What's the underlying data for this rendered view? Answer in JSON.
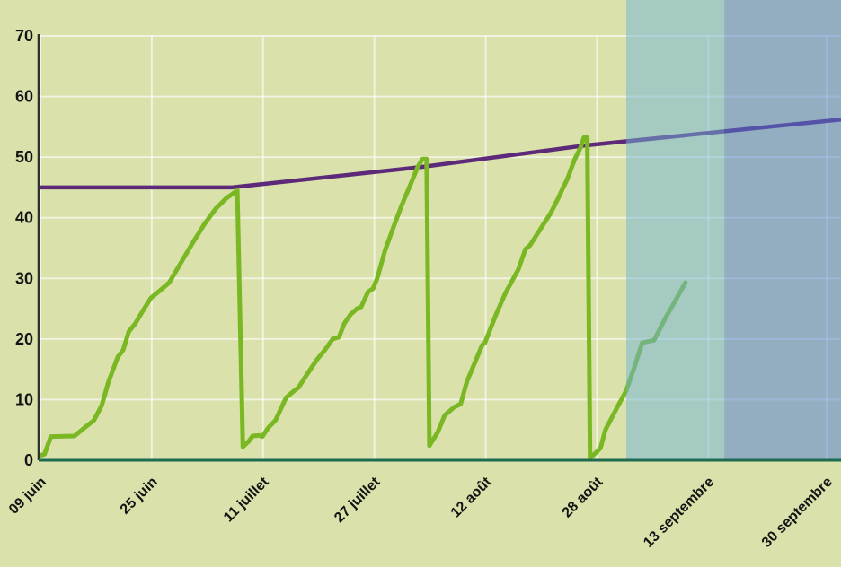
{
  "chart_data": {
    "type": "line",
    "title": "",
    "xlabel": "",
    "ylabel": "",
    "legend": "none",
    "grid": true,
    "x_unit": "days-since-first-tick",
    "x_domain": [
      0,
      115.1
    ],
    "y_domain": [
      0,
      70
    ],
    "y_ticks": [
      0,
      10,
      20,
      30,
      40,
      50,
      60,
      70
    ],
    "x_ticks": [
      {
        "day": 0,
        "label": "09 juin"
      },
      {
        "day": 16,
        "label": "25 juin"
      },
      {
        "day": 32,
        "label": "11 juillet"
      },
      {
        "day": 48,
        "label": "27 juillet"
      },
      {
        "day": 64,
        "label": "12 août"
      },
      {
        "day": 80,
        "label": "28 août"
      },
      {
        "day": 96,
        "label": "13 septembre"
      },
      {
        "day": 113,
        "label": "30 septembre"
      }
    ],
    "series": [
      {
        "name": "threshold-line",
        "color": "#5c2a78",
        "width": 4.5,
        "points": [
          [
            0,
            45
          ],
          [
            27.5,
            45
          ],
          [
            54.9,
            48.4
          ],
          [
            78.1,
            51.9
          ],
          [
            115.1,
            56.2
          ]
        ]
      },
      {
        "name": "observed-line",
        "color": "#79b723",
        "width": 5,
        "points": [
          [
            0,
            0.8
          ],
          [
            0.6,
            1
          ],
          [
            1.5,
            3.9
          ],
          [
            4.9,
            4
          ],
          [
            6.5,
            5.5
          ],
          [
            7.7,
            6.6
          ],
          [
            8.8,
            9
          ],
          [
            9.8,
            13
          ],
          [
            11.1,
            17
          ],
          [
            11.9,
            18.2
          ],
          [
            12.7,
            21.2
          ],
          [
            13.6,
            22.5
          ],
          [
            14.9,
            25
          ],
          [
            15.9,
            26.8
          ],
          [
            17.2,
            28
          ],
          [
            18.5,
            29.3
          ],
          [
            20,
            32.2
          ],
          [
            21.7,
            35.5
          ],
          [
            23.6,
            39
          ],
          [
            25.2,
            41.5
          ],
          [
            26.7,
            43.2
          ],
          [
            28.3,
            44.5
          ],
          [
            29.1,
            2.2
          ],
          [
            30,
            3.2
          ],
          [
            30.5,
            4
          ],
          [
            31.4,
            4.1
          ],
          [
            31.9,
            3.9
          ],
          [
            32.7,
            5.3
          ],
          [
            33.8,
            6.6
          ],
          [
            35.3,
            10.3
          ],
          [
            36.2,
            11.2
          ],
          [
            37.1,
            12
          ],
          [
            38.1,
            13.8
          ],
          [
            39.8,
            16.7
          ],
          [
            40.9,
            18.2
          ],
          [
            42,
            20
          ],
          [
            42.9,
            20.3
          ],
          [
            43.7,
            22.6
          ],
          [
            44.6,
            24.1
          ],
          [
            45.5,
            25
          ],
          [
            46.1,
            25.3
          ],
          [
            47.1,
            27.8
          ],
          [
            47.8,
            28.3
          ],
          [
            48.4,
            30
          ],
          [
            49.5,
            34.5
          ],
          [
            50.6,
            38
          ],
          [
            51.9,
            42
          ],
          [
            53.2,
            45.5
          ],
          [
            54.2,
            48.3
          ],
          [
            54.9,
            49.7
          ],
          [
            55.5,
            49.7
          ],
          [
            55.9,
            2.4
          ],
          [
            57.1,
            4.6
          ],
          [
            58.1,
            7.4
          ],
          [
            59.4,
            8.7
          ],
          [
            60.4,
            9.3
          ],
          [
            61.3,
            13
          ],
          [
            62.4,
            16
          ],
          [
            63.5,
            19
          ],
          [
            63.9,
            19.4
          ],
          [
            65.5,
            24.1
          ],
          [
            66.8,
            27.5
          ],
          [
            68.7,
            31.5
          ],
          [
            69.7,
            34.8
          ],
          [
            70.4,
            35.5
          ],
          [
            71.9,
            38.2
          ],
          [
            73.3,
            40.7
          ],
          [
            74.5,
            43.4
          ],
          [
            75,
            44.7
          ],
          [
            75.7,
            46.3
          ],
          [
            76.8,
            49.7
          ],
          [
            77.6,
            51.5
          ],
          [
            78.1,
            53.2
          ],
          [
            78.6,
            53.2
          ],
          [
            79,
            0.4
          ],
          [
            79.8,
            1.2
          ],
          [
            80.5,
            2
          ],
          [
            81.2,
            5
          ],
          [
            82.7,
            8.3
          ],
          [
            84.2,
            11.5
          ],
          [
            85.4,
            15.5
          ],
          [
            86.5,
            19.4
          ],
          [
            87.4,
            19.6
          ],
          [
            88.2,
            19.8
          ],
          [
            89.8,
            23.4
          ],
          [
            91.1,
            26
          ],
          [
            92.7,
            29.3
          ]
        ]
      }
    ],
    "forecast_regions": [
      {
        "name": "forecast-near",
        "from_day": 84.2,
        "to_day": 98.3,
        "overlay_color": "rgba(112,180,216,0.5)"
      },
      {
        "name": "forecast-far",
        "from_day": 98.3,
        "to_day": 115.1,
        "overlay_color": "rgba(76,124,214,0.5)"
      }
    ],
    "colors": {
      "background": "#dae1ab",
      "grid": "rgba(255,255,255,0.6)",
      "y_axis": "#2f2f2f",
      "x_axis": "#1d6b50",
      "tick_text": "#141414"
    }
  }
}
